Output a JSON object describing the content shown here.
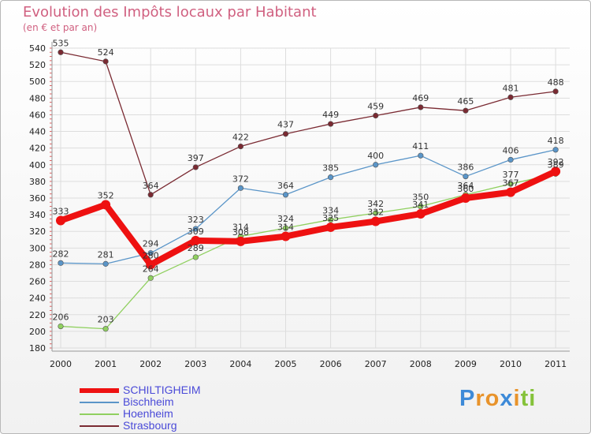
{
  "header": {
    "title": "Evolution des Impôts locaux par Habitant",
    "subtitle": "(en € et par an)"
  },
  "brand": {
    "name": "Proxiti",
    "letters": [
      "P",
      "r",
      "o",
      "x",
      "i",
      "t",
      "i"
    ],
    "letter_colors": [
      "#3d8ad8",
      "#e8932b",
      "#e8932b",
      "#3d8ad8",
      "#e8932b",
      "#85c23a",
      "#85c23a"
    ]
  },
  "chart_data": {
    "type": "line",
    "title": "Evolution des Impôts locaux par Habitant",
    "subtitle": "(en € et par an)",
    "xlabel": "",
    "ylabel": "",
    "x": [
      "2000",
      "2001",
      "2002",
      "2003",
      "2004",
      "2005",
      "2006",
      "2007",
      "2008",
      "2009",
      "2010",
      "2011"
    ],
    "ylim": [
      180,
      540
    ],
    "ytick_step": 20,
    "yticks": [
      "180",
      "200",
      "220",
      "240",
      "260",
      "280",
      "300",
      "320",
      "340",
      "360",
      "380",
      "400",
      "420",
      "440",
      "460",
      "480",
      "500",
      "520",
      "540"
    ],
    "grid": true,
    "legend_position": "bottom-left",
    "series": [
      {
        "name": "Strasbourg",
        "color": "#7a2a32",
        "values": [
          535,
          524,
          364,
          397,
          422,
          437,
          449,
          459,
          469,
          465,
          481,
          488
        ],
        "labels": [
          "535",
          "524",
          "364",
          "397",
          "422",
          "437",
          "449",
          "459",
          "469",
          "465",
          "481",
          "488"
        ]
      },
      {
        "name": "Bischheim",
        "color": "#5a95c8",
        "values": [
          282,
          281,
          294,
          323,
          372,
          364,
          385,
          400,
          411,
          386,
          406,
          418
        ],
        "labels": [
          "282",
          "281",
          "294",
          "323",
          "372",
          "364",
          "385",
          "400",
          "411",
          "386",
          "406",
          "418"
        ]
      },
      {
        "name": "Hoenheim",
        "color": "#90d060",
        "values": [
          206,
          203,
          264,
          289,
          314,
          324,
          334,
          342,
          350,
          364,
          377,
          389
        ],
        "labels": [
          "206",
          "203",
          "264",
          "289",
          "314",
          "324",
          "334",
          "342",
          "350",
          "364",
          "377",
          "389"
        ]
      },
      {
        "name": "SCHILTIGHEIM",
        "color": "#ee1111",
        "values": [
          333,
          352,
          280,
          309,
          308,
          314,
          325,
          332,
          341,
          360,
          367,
          392
        ],
        "labels": [
          "333",
          "352",
          "280",
          "309",
          "308",
          "314",
          "325",
          "332",
          "341",
          "360",
          "367",
          "392"
        ]
      }
    ]
  }
}
